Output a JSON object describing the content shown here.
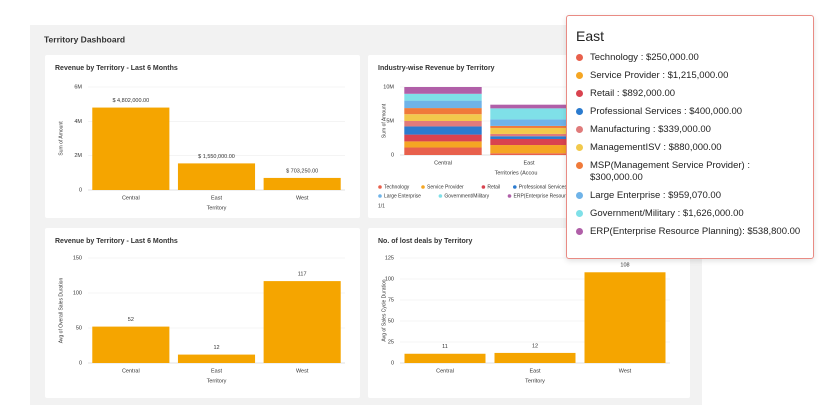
{
  "dashboard_title": "Territory Dashboard",
  "chart_data": [
    {
      "type": "bar",
      "title": "Revenue by Territory - Last 6 Months",
      "x_label": "Territory",
      "y_label": "Sum of Amount",
      "categories": [
        "Central",
        "East",
        "West"
      ],
      "values": [
        4802000,
        1550000,
        703250
      ],
      "value_labels": [
        "$ 4,802,000.00",
        "$ 1,550,000.00",
        "$ 703,250.00"
      ],
      "color": "#f5a500",
      "ylim": [
        0,
        6000000
      ],
      "yticks": [
        0,
        {
          "value": 2000000,
          "label": "2M"
        },
        {
          "value": 4000000,
          "label": "4M"
        },
        {
          "value": 6000000,
          "label": "6M"
        }
      ]
    },
    {
      "type": "stacked_bar",
      "title": "Industry-wise Revenue by Territory",
      "x_label": "Territories (Accou",
      "y_label": "Sum of Amount",
      "categories": [
        "Central",
        "East"
      ],
      "series": [
        {
          "name": "Technology",
          "color": "#e8604c",
          "values": [
            1100000,
            250000
          ]
        },
        {
          "name": "Service Provider",
          "color": "#f5a623",
          "values": [
            900000,
            1215000
          ]
        },
        {
          "name": "Retail",
          "color": "#d9434f",
          "values": [
            1000000,
            892000
          ]
        },
        {
          "name": "Professional Services",
          "color": "#2b7bcf",
          "values": [
            1200000,
            400000
          ]
        },
        {
          "name": "Manufacturing",
          "color": "#e07b7b",
          "values": [
            800000,
            339000
          ]
        },
        {
          "name": "ManagementISV",
          "color": "#f2c94c",
          "values": [
            1000000,
            880000
          ]
        },
        {
          "name": "MSP(Management Service Provider)",
          "color": "#f07a3a",
          "values": [
            900000,
            300000
          ]
        },
        {
          "name": "Large Enterprise",
          "color": "#6fb3e8",
          "values": [
            1100000,
            959070
          ]
        },
        {
          "name": "Government/Military",
          "color": "#7fe0e8",
          "values": [
            1000000,
            1626000
          ]
        },
        {
          "name": "ERP(Enterprise Resource Planning)",
          "color": "#b05fa8",
          "values": [
            1000000,
            538800
          ]
        }
      ],
      "legend_page": "1/1",
      "ylim": [
        0,
        10000000
      ],
      "yticks": [
        0,
        {
          "value": 5000000,
          "label": "5M"
        },
        {
          "value": 10000000,
          "label": "10M"
        }
      ]
    },
    {
      "type": "bar",
      "title": "Revenue by Territory - Last 6 Months",
      "x_label": "Territory",
      "y_label": "Avg of Overall Sales Duration",
      "categories": [
        "Central",
        "East",
        "West"
      ],
      "values": [
        52,
        12,
        117
      ],
      "color": "#f5a500",
      "ylim": [
        0,
        150
      ],
      "yticks": [
        0,
        50,
        100,
        150
      ]
    },
    {
      "type": "bar",
      "title": "No. of lost deals by Territory",
      "x_label": "Territory",
      "y_label": "Avg of Sales Cycle Duration",
      "categories": [
        "Central",
        "East",
        "West"
      ],
      "values": [
        11,
        12,
        108
      ],
      "color": "#f5a500",
      "ylim": [
        0,
        125
      ],
      "yticks": [
        0,
        25,
        50,
        75,
        100,
        125
      ]
    }
  ],
  "tooltip": {
    "title": "East",
    "items": [
      "Technology : $250,000.00",
      "Service Provider : $1,215,000.00",
      "Retail : $892,000.00",
      "Professional Services : $400,000.00",
      "Manufacturing : $339,000.00",
      "ManagementISV : $880,000.00",
      "MSP(Management Service Provider) : $300,000.00",
      "Large Enterprise : $959,070.00",
      "Government/Military : $1,626,000.00",
      "ERP(Enterprise Resource Planning): $538,800.00"
    ]
  }
}
